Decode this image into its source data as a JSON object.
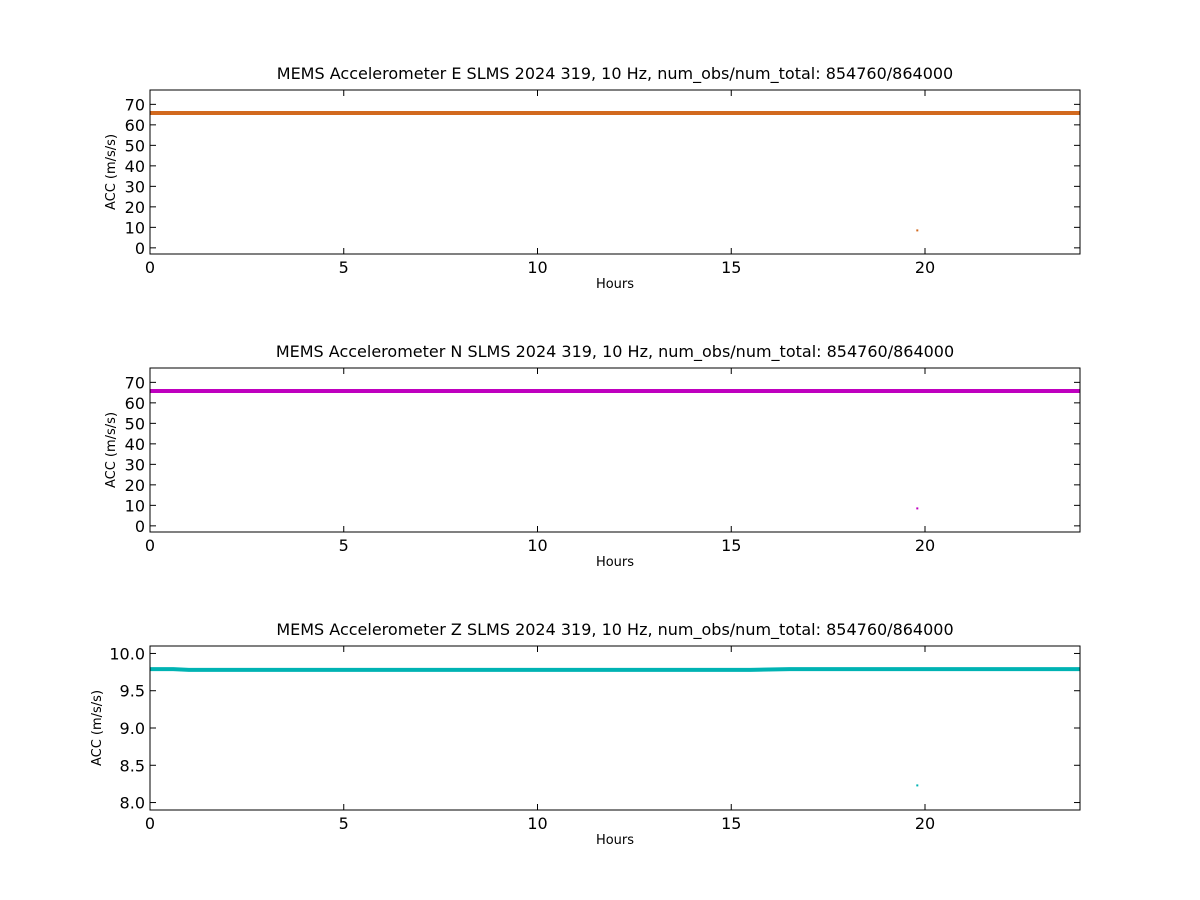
{
  "chart_data": [
    {
      "type": "scatter",
      "title": "MEMS Accelerometer E SLMS 2024 319, 10 Hz, num_obs/num_total: 854760/864000",
      "xlabel": "Hours",
      "ylabel": "ACC (m/s/s)",
      "xlim": [
        0,
        24
      ],
      "ylim": [
        -3,
        77
      ],
      "xticks": [
        0,
        5,
        10,
        15,
        20
      ],
      "yticks": [
        0,
        10,
        20,
        30,
        40,
        50,
        60,
        70
      ],
      "ytick_labels": [
        "0",
        "10",
        "20",
        "30",
        "40",
        "50",
        "60",
        "70"
      ],
      "color": "#d2691e",
      "series": [
        {
          "x": [
            0,
            2,
            4,
            6,
            8,
            10,
            12,
            14,
            16,
            18,
            19.7,
            20,
            22,
            24
          ],
          "y": [
            65.8,
            65.8,
            65.8,
            65.8,
            65.8,
            65.8,
            65.8,
            65.8,
            65.8,
            65.8,
            65.8,
            65.8,
            65.8,
            65.8
          ]
        }
      ],
      "outliers": [
        {
          "x": 19.8,
          "y": 8.5
        }
      ],
      "grid": false
    },
    {
      "type": "scatter",
      "title": "MEMS Accelerometer N SLMS 2024 319, 10 Hz, num_obs/num_total: 854760/864000",
      "xlabel": "Hours",
      "ylabel": "ACC (m/s/s)",
      "xlim": [
        0,
        24
      ],
      "ylim": [
        -3,
        77
      ],
      "xticks": [
        0,
        5,
        10,
        15,
        20
      ],
      "yticks": [
        0,
        10,
        20,
        30,
        40,
        50,
        60,
        70
      ],
      "ytick_labels": [
        "0",
        "10",
        "20",
        "30",
        "40",
        "50",
        "60",
        "70"
      ],
      "color": "#bf00bf",
      "series": [
        {
          "x": [
            0,
            2,
            4,
            6,
            8,
            10,
            12,
            14,
            16,
            18,
            19.7,
            20,
            22,
            24
          ],
          "y": [
            65.8,
            65.8,
            65.8,
            65.8,
            65.8,
            65.8,
            65.8,
            65.8,
            65.8,
            65.8,
            65.8,
            65.8,
            65.8,
            65.8
          ]
        }
      ],
      "outliers": [
        {
          "x": 19.8,
          "y": 8.5
        }
      ],
      "grid": false
    },
    {
      "type": "scatter",
      "title": "MEMS Accelerometer Z SLMS 2024 319, 10 Hz, num_obs/num_total: 854760/864000",
      "xlabel": "Hours",
      "ylabel": "ACC (m/s/s)",
      "xlim": [
        0,
        24
      ],
      "ylim": [
        7.9,
        10.1
      ],
      "xticks": [
        0,
        5,
        10,
        15,
        20
      ],
      "yticks": [
        8.0,
        8.5,
        9.0,
        9.5,
        10.0
      ],
      "ytick_labels": [
        "8.0",
        "8.5",
        "9.0",
        "9.5",
        "10.0"
      ],
      "color": "#00b3b3",
      "series": [
        {
          "x": [
            0,
            0.6,
            1,
            3,
            5,
            8,
            10,
            12,
            14,
            15.5,
            16.5,
            17.5,
            18.5,
            19.5,
            20.5,
            22,
            24
          ],
          "y": [
            9.79,
            9.79,
            9.78,
            9.78,
            9.78,
            9.78,
            9.78,
            9.78,
            9.78,
            9.78,
            9.79,
            9.79,
            9.79,
            9.79,
            9.79,
            9.79,
            9.79
          ]
        }
      ],
      "outliers": [
        {
          "x": 19.8,
          "y": 8.23
        }
      ],
      "grid": false
    }
  ]
}
